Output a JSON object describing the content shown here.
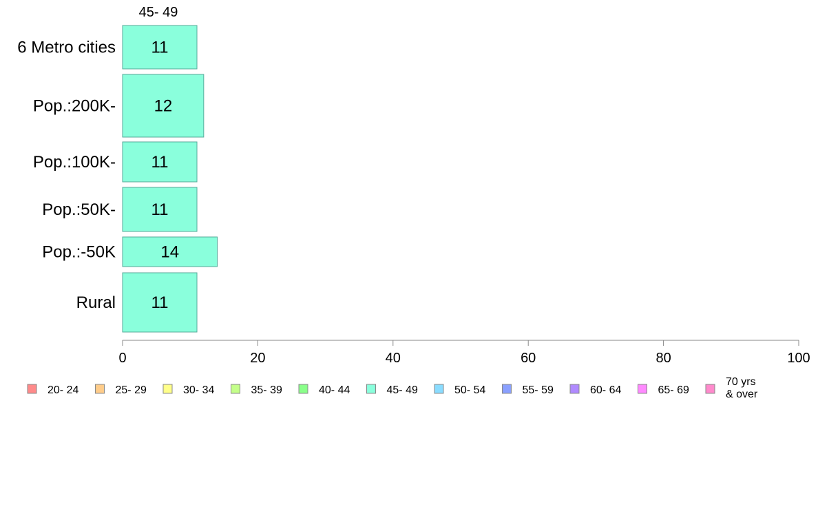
{
  "chart_data": {
    "type": "bar",
    "orientation": "horizontal",
    "series_title": "45- 49",
    "categories": [
      "6 Metro cities",
      "Pop.:200K-",
      "Pop.:100K-",
      "Pop.:50K-",
      "Pop.:-50K",
      "Rural"
    ],
    "series": [
      {
        "name": "45- 49",
        "values": [
          11,
          12,
          11,
          11,
          14,
          11
        ],
        "color": "#8affdc"
      }
    ],
    "data_labels": [
      "11",
      "12",
      "11",
      "11",
      "14",
      "11"
    ],
    "xlim": [
      0,
      100
    ],
    "xticks": [
      0,
      20,
      40,
      60,
      80,
      100
    ],
    "grid": false,
    "legend_placement": "bottom",
    "legend": [
      {
        "label": "20- 24",
        "color": "#ff8a8a"
      },
      {
        "label": "25- 29",
        "color": "#ffcc8a"
      },
      {
        "label": "30- 34",
        "color": "#ffff8a"
      },
      {
        "label": "35- 39",
        "color": "#c4ff8a"
      },
      {
        "label": "40- 44",
        "color": "#8aff8a"
      },
      {
        "label": "45- 49",
        "color": "#8affdc"
      },
      {
        "label": "50- 54",
        "color": "#8adcff"
      },
      {
        "label": "55- 59",
        "color": "#8aa0ff"
      },
      {
        "label": "60- 64",
        "color": "#b08aff"
      },
      {
        "label": "65- 69",
        "color": "#ff8aff"
      },
      {
        "label": "70 yrs\n& over",
        "color": "#ff8acc"
      }
    ],
    "bar_outline_color": "#55aa99",
    "axis_color": "#888888"
  }
}
